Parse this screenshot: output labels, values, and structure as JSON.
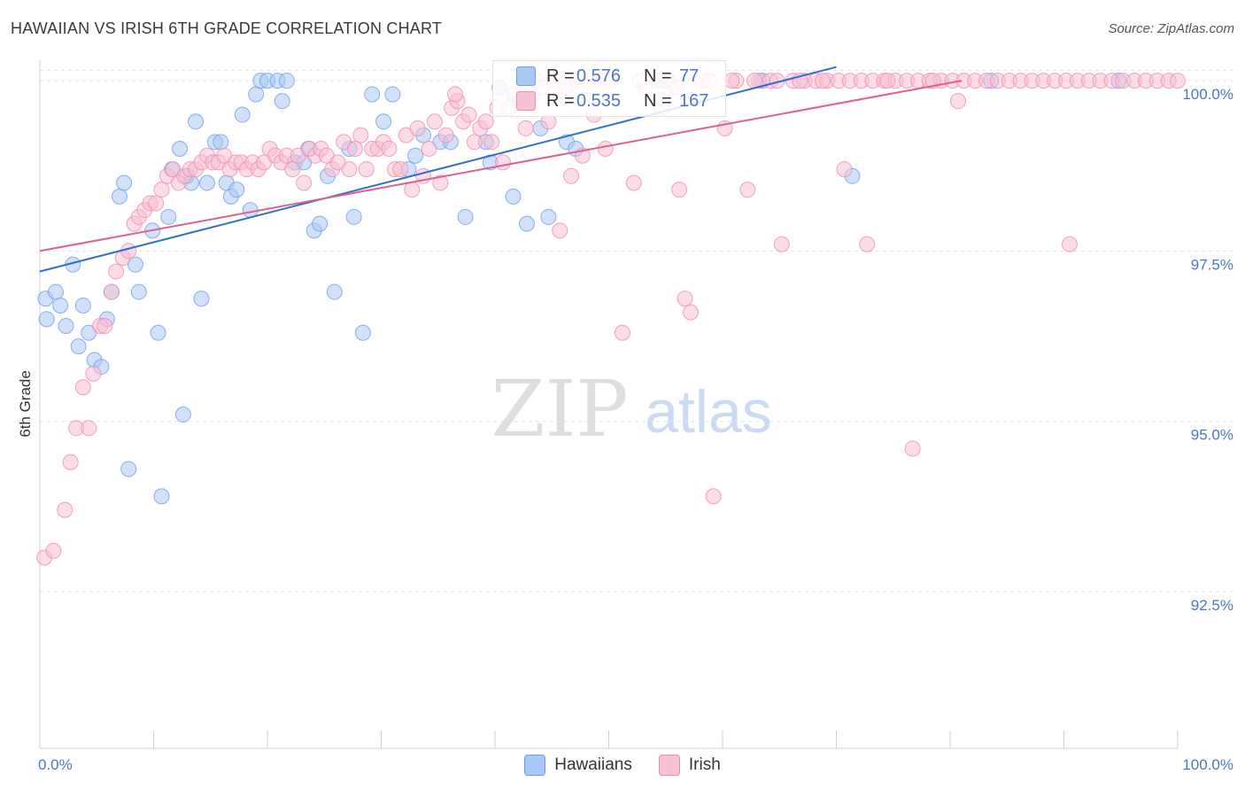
{
  "header": {
    "title": "HAWAIIAN VS IRISH 6TH GRADE CORRELATION CHART",
    "source": "Source: ZipAtlas.com"
  },
  "watermark": {
    "zip": "ZIP",
    "atlas": "atlas"
  },
  "stats": {
    "hawaiians": {
      "r_label": "R =",
      "r_value": "0.576",
      "n_label": "N =",
      "n_value": "77"
    },
    "irish": {
      "r_label": "R =",
      "r_value": "0.535",
      "n_label": "N =",
      "n_value": "167"
    }
  },
  "colors": {
    "hawaiians": "#6d9eeb",
    "hawaiians_fill": "#a9c8f4",
    "hawaiians_line": "#2f6fcf",
    "irish": "#f08bb0",
    "irish_fill": "#f7c0d4",
    "irish_line": "#e0608c",
    "tick_label": "#4a77c8",
    "grid": "#e2e2e2"
  },
  "chart_data": {
    "type": "scatter",
    "title": "HAWAIIAN VS IRISH 6TH GRADE CORRELATION CHART",
    "xlabel": "",
    "ylabel": "6th Grade",
    "xlim": [
      0,
      100
    ],
    "ylim": [
      90.2,
      100.3
    ],
    "x_tick_labels": [
      "0.0%",
      "100.0%"
    ],
    "y_ticks": [
      92.5,
      95.0,
      97.5,
      100.0
    ],
    "y_tick_labels": [
      "92.5%",
      "95.0%",
      "97.5%",
      "100.0%"
    ],
    "grid": true,
    "legend_position": "bottom",
    "series": [
      {
        "name": "Hawaiians",
        "trend": {
          "x": [
            0,
            70
          ],
          "y": [
            97.2,
            100.2
          ]
        },
        "points": [
          [
            0.5,
            96.8
          ],
          [
            0.6,
            96.5
          ],
          [
            1.4,
            96.9
          ],
          [
            1.8,
            96.7
          ],
          [
            2.3,
            96.4
          ],
          [
            2.9,
            97.3
          ],
          [
            3.4,
            96.1
          ],
          [
            3.8,
            96.7
          ],
          [
            4.3,
            96.3
          ],
          [
            4.8,
            95.9
          ],
          [
            5.4,
            95.8
          ],
          [
            5.9,
            96.5
          ],
          [
            6.3,
            96.9
          ],
          [
            7.0,
            98.3
          ],
          [
            7.4,
            98.5
          ],
          [
            7.8,
            94.3
          ],
          [
            8.4,
            97.3
          ],
          [
            8.7,
            96.9
          ],
          [
            9.9,
            97.8
          ],
          [
            10.4,
            96.3
          ],
          [
            10.7,
            93.9
          ],
          [
            11.3,
            98.0
          ],
          [
            11.6,
            98.7
          ],
          [
            12.3,
            99.0
          ],
          [
            12.6,
            95.1
          ],
          [
            12.9,
            98.6
          ],
          [
            13.3,
            98.5
          ],
          [
            13.7,
            99.4
          ],
          [
            14.2,
            96.8
          ],
          [
            14.7,
            98.5
          ],
          [
            15.4,
            99.1
          ],
          [
            15.9,
            99.1
          ],
          [
            16.4,
            98.5
          ],
          [
            16.8,
            98.3
          ],
          [
            17.3,
            98.4
          ],
          [
            17.8,
            99.5
          ],
          [
            18.5,
            98.1
          ],
          [
            19.0,
            99.8
          ],
          [
            19.4,
            100.0
          ],
          [
            20.0,
            100.0
          ],
          [
            20.9,
            100.0
          ],
          [
            21.3,
            99.7
          ],
          [
            21.7,
            100.0
          ],
          [
            22.4,
            98.8
          ],
          [
            23.2,
            98.8
          ],
          [
            23.6,
            99.0
          ],
          [
            24.1,
            97.8
          ],
          [
            24.6,
            97.9
          ],
          [
            25.3,
            98.6
          ],
          [
            25.9,
            96.9
          ],
          [
            27.2,
            99.0
          ],
          [
            27.6,
            98.0
          ],
          [
            28.4,
            96.3
          ],
          [
            29.2,
            99.8
          ],
          [
            30.2,
            99.4
          ],
          [
            31.0,
            99.8
          ],
          [
            32.4,
            98.7
          ],
          [
            33.0,
            98.9
          ],
          [
            33.7,
            99.2
          ],
          [
            35.2,
            99.1
          ],
          [
            36.1,
            99.1
          ],
          [
            37.4,
            98.0
          ],
          [
            39.2,
            99.1
          ],
          [
            39.6,
            98.8
          ],
          [
            40.4,
            99.9
          ],
          [
            41.6,
            98.3
          ],
          [
            42.8,
            97.9
          ],
          [
            44.0,
            99.3
          ],
          [
            44.7,
            98.0
          ],
          [
            46.3,
            99.1
          ],
          [
            47.1,
            99.0
          ],
          [
            54.6,
            100.0
          ],
          [
            55.2,
            100.0
          ],
          [
            63.5,
            100.0
          ],
          [
            71.4,
            98.6
          ],
          [
            83.6,
            100.0
          ],
          [
            94.8,
            100.0
          ]
        ]
      },
      {
        "name": "Irish",
        "trend": {
          "x": [
            0,
            81
          ],
          "y": [
            97.5,
            100.0
          ]
        },
        "points": [
          [
            0.4,
            93.0
          ],
          [
            1.2,
            93.1
          ],
          [
            2.2,
            93.7
          ],
          [
            2.7,
            94.4
          ],
          [
            3.2,
            94.9
          ],
          [
            3.8,
            95.5
          ],
          [
            4.3,
            94.9
          ],
          [
            4.7,
            95.7
          ],
          [
            5.3,
            96.4
          ],
          [
            5.7,
            96.4
          ],
          [
            6.3,
            96.9
          ],
          [
            6.7,
            97.2
          ],
          [
            7.3,
            97.4
          ],
          [
            7.8,
            97.5
          ],
          [
            8.3,
            97.9
          ],
          [
            8.7,
            98.0
          ],
          [
            9.2,
            98.1
          ],
          [
            9.7,
            98.2
          ],
          [
            10.2,
            98.2
          ],
          [
            10.7,
            98.4
          ],
          [
            11.2,
            98.6
          ],
          [
            11.7,
            98.7
          ],
          [
            12.2,
            98.5
          ],
          [
            12.7,
            98.6
          ],
          [
            13.2,
            98.7
          ],
          [
            13.7,
            98.7
          ],
          [
            14.2,
            98.8
          ],
          [
            14.7,
            98.9
          ],
          [
            15.2,
            98.8
          ],
          [
            15.7,
            98.8
          ],
          [
            16.2,
            98.9
          ],
          [
            16.7,
            98.7
          ],
          [
            17.2,
            98.8
          ],
          [
            17.7,
            98.8
          ],
          [
            18.2,
            98.7
          ],
          [
            18.7,
            98.8
          ],
          [
            19.2,
            98.7
          ],
          [
            19.7,
            98.8
          ],
          [
            20.2,
            99.0
          ],
          [
            20.7,
            98.9
          ],
          [
            21.2,
            98.8
          ],
          [
            21.7,
            98.9
          ],
          [
            22.2,
            98.7
          ],
          [
            22.7,
            98.9
          ],
          [
            23.2,
            98.5
          ],
          [
            23.7,
            99.0
          ],
          [
            24.2,
            98.9
          ],
          [
            24.7,
            99.0
          ],
          [
            25.2,
            98.9
          ],
          [
            25.7,
            98.7
          ],
          [
            26.2,
            98.8
          ],
          [
            26.7,
            99.1
          ],
          [
            27.2,
            98.7
          ],
          [
            27.7,
            99.0
          ],
          [
            28.2,
            99.2
          ],
          [
            28.7,
            98.7
          ],
          [
            29.2,
            99.0
          ],
          [
            29.7,
            99.0
          ],
          [
            30.2,
            99.1
          ],
          [
            30.7,
            99.0
          ],
          [
            31.2,
            98.7
          ],
          [
            31.7,
            98.7
          ],
          [
            32.2,
            99.2
          ],
          [
            32.7,
            98.4
          ],
          [
            33.2,
            99.3
          ],
          [
            33.7,
            98.6
          ],
          [
            34.2,
            99.0
          ],
          [
            34.7,
            99.4
          ],
          [
            35.2,
            98.5
          ],
          [
            35.7,
            99.2
          ],
          [
            36.2,
            99.6
          ],
          [
            36.7,
            99.7
          ],
          [
            37.2,
            99.4
          ],
          [
            37.7,
            99.5
          ],
          [
            38.2,
            99.1
          ],
          [
            38.7,
            99.3
          ],
          [
            39.2,
            99.4
          ],
          [
            39.7,
            99.1
          ],
          [
            40.2,
            99.6
          ],
          [
            40.7,
            98.8
          ],
          [
            41.2,
            99.6
          ],
          [
            41.7,
            99.8
          ],
          [
            42.2,
            99.7
          ],
          [
            42.7,
            99.3
          ],
          [
            43.2,
            99.8
          ],
          [
            43.7,
            100.0
          ],
          [
            44.2,
            99.9
          ],
          [
            44.7,
            99.4
          ],
          [
            45.2,
            100.0
          ],
          [
            45.7,
            97.8
          ],
          [
            46.2,
            99.9
          ],
          [
            46.7,
            98.6
          ],
          [
            47.2,
            100.0
          ],
          [
            47.7,
            98.9
          ],
          [
            48.2,
            100.0
          ],
          [
            48.7,
            99.5
          ],
          [
            49.2,
            100.0
          ],
          [
            49.7,
            99.0
          ],
          [
            50.2,
            100.0
          ],
          [
            51.2,
            96.3
          ],
          [
            52.2,
            98.5
          ],
          [
            53.2,
            99.9
          ],
          [
            54.2,
            100.0
          ],
          [
            55.2,
            100.0
          ],
          [
            56.2,
            98.4
          ],
          [
            56.7,
            96.8
          ],
          [
            57.2,
            96.6
          ],
          [
            58.2,
            100.0
          ],
          [
            59.2,
            93.9
          ],
          [
            60.2,
            99.3
          ],
          [
            61.2,
            100.0
          ],
          [
            62.2,
            98.4
          ],
          [
            63.2,
            100.0
          ],
          [
            64.2,
            100.0
          ],
          [
            65.2,
            97.6
          ],
          [
            66.2,
            100.0
          ],
          [
            67.2,
            100.0
          ],
          [
            68.2,
            100.0
          ],
          [
            69.2,
            100.0
          ],
          [
            70.2,
            100.0
          ],
          [
            70.7,
            98.7
          ],
          [
            71.2,
            100.0
          ],
          [
            72.2,
            100.0
          ],
          [
            72.7,
            97.6
          ],
          [
            73.2,
            100.0
          ],
          [
            74.2,
            100.0
          ],
          [
            75.2,
            100.0
          ],
          [
            76.2,
            100.0
          ],
          [
            76.7,
            94.6
          ],
          [
            77.2,
            100.0
          ],
          [
            78.2,
            100.0
          ],
          [
            79.2,
            100.0
          ],
          [
            80.2,
            100.0
          ],
          [
            80.7,
            99.7
          ],
          [
            81.2,
            100.0
          ],
          [
            82.2,
            100.0
          ],
          [
            83.2,
            100.0
          ],
          [
            84.2,
            100.0
          ],
          [
            85.2,
            100.0
          ],
          [
            86.2,
            100.0
          ],
          [
            87.2,
            100.0
          ],
          [
            88.2,
            100.0
          ],
          [
            89.2,
            100.0
          ],
          [
            90.2,
            100.0
          ],
          [
            91.2,
            100.0
          ],
          [
            92.2,
            100.0
          ],
          [
            93.2,
            100.0
          ],
          [
            94.2,
            100.0
          ],
          [
            95.2,
            100.0
          ],
          [
            96.2,
            100.0
          ],
          [
            97.2,
            100.0
          ],
          [
            98.2,
            100.0
          ],
          [
            99.2,
            100.0
          ],
          [
            100.0,
            100.0
          ],
          [
            36.5,
            99.8
          ],
          [
            52.7,
            100.0
          ],
          [
            54.7,
            99.6
          ],
          [
            56.0,
            99.9
          ],
          [
            58.8,
            100.0
          ],
          [
            60.8,
            100.0
          ],
          [
            62.8,
            100.0
          ],
          [
            64.8,
            100.0
          ],
          [
            66.8,
            100.0
          ],
          [
            68.8,
            100.0
          ],
          [
            90.5,
            97.6
          ],
          [
            74.5,
            100.0
          ],
          [
            78.5,
            100.0
          ]
        ]
      }
    ],
    "legend": [
      "Hawaiians",
      "Irish"
    ]
  }
}
